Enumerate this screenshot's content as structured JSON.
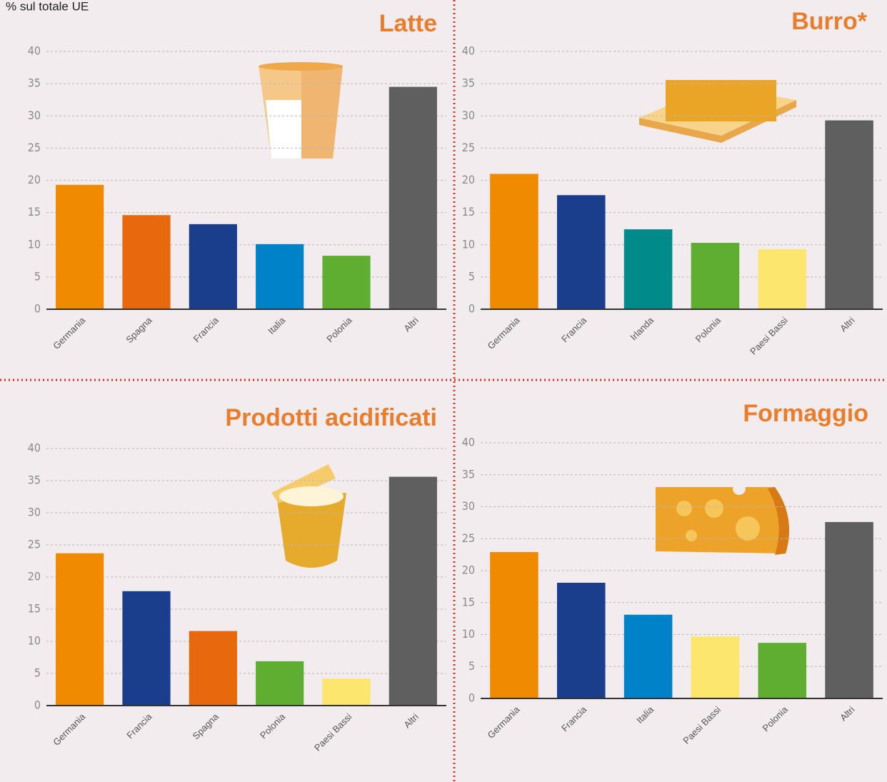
{
  "chart_data": [
    {
      "type": "bar",
      "title": "Latte",
      "ylabel": "% sul totale UE",
      "categories": [
        "Germania",
        "Spagna",
        "Francia",
        "Italia",
        "Polonia",
        "Altri"
      ],
      "values": [
        19.3,
        14.6,
        13.2,
        10.1,
        8.3,
        34.5
      ],
      "colors": [
        "#f08a00",
        "#e8680e",
        "#1a3e8c",
        "#0082c8",
        "#5fae32",
        "#5f5f5f"
      ],
      "ylim": [
        0,
        40
      ],
      "yticks": [
        0,
        5,
        10,
        15,
        20,
        25,
        30,
        35,
        40
      ],
      "grid": true
    },
    {
      "type": "bar",
      "title": "Burro*",
      "categories": [
        "Germania",
        "Francia",
        "Irlanda",
        "Polonia",
        "Paesi Bassi",
        "Altri"
      ],
      "values": [
        21.0,
        17.7,
        12.4,
        10.3,
        9.3,
        29.3
      ],
      "colors": [
        "#f08a00",
        "#1a3e8c",
        "#008b8b",
        "#5fae32",
        "#fde66e",
        "#5f5f5f"
      ],
      "ylim": [
        0,
        40
      ],
      "yticks": [
        0,
        5,
        10,
        15,
        20,
        25,
        30,
        35,
        40
      ],
      "grid": true
    },
    {
      "type": "bar",
      "title": "Prodotti acidificati",
      "categories": [
        "Germania",
        "Francia",
        "Spagna",
        "Polonia",
        "Paesi Bassi",
        "Altri"
      ],
      "values": [
        23.7,
        17.8,
        11.6,
        6.9,
        4.2,
        35.6
      ],
      "colors": [
        "#f08a00",
        "#1a3e8c",
        "#e8680e",
        "#5fae32",
        "#fde66e",
        "#5f5f5f"
      ],
      "ylim": [
        0,
        40
      ],
      "yticks": [
        0,
        5,
        10,
        15,
        20,
        25,
        30,
        35,
        40
      ],
      "grid": true
    },
    {
      "type": "bar",
      "title": "Formaggio",
      "categories": [
        "Germania",
        "Francia",
        "Italia",
        "Paesi Bassi",
        "Polonia",
        "Altri"
      ],
      "values": [
        22.9,
        18.1,
        13.1,
        9.7,
        8.7,
        27.6
      ],
      "colors": [
        "#f08a00",
        "#1a3e8c",
        "#0082c8",
        "#fde66e",
        "#5fae32",
        "#5f5f5f"
      ],
      "ylim": [
        0,
        40
      ],
      "yticks": [
        0,
        5,
        10,
        15,
        20,
        25,
        30,
        35,
        40
      ],
      "grid": true
    }
  ]
}
